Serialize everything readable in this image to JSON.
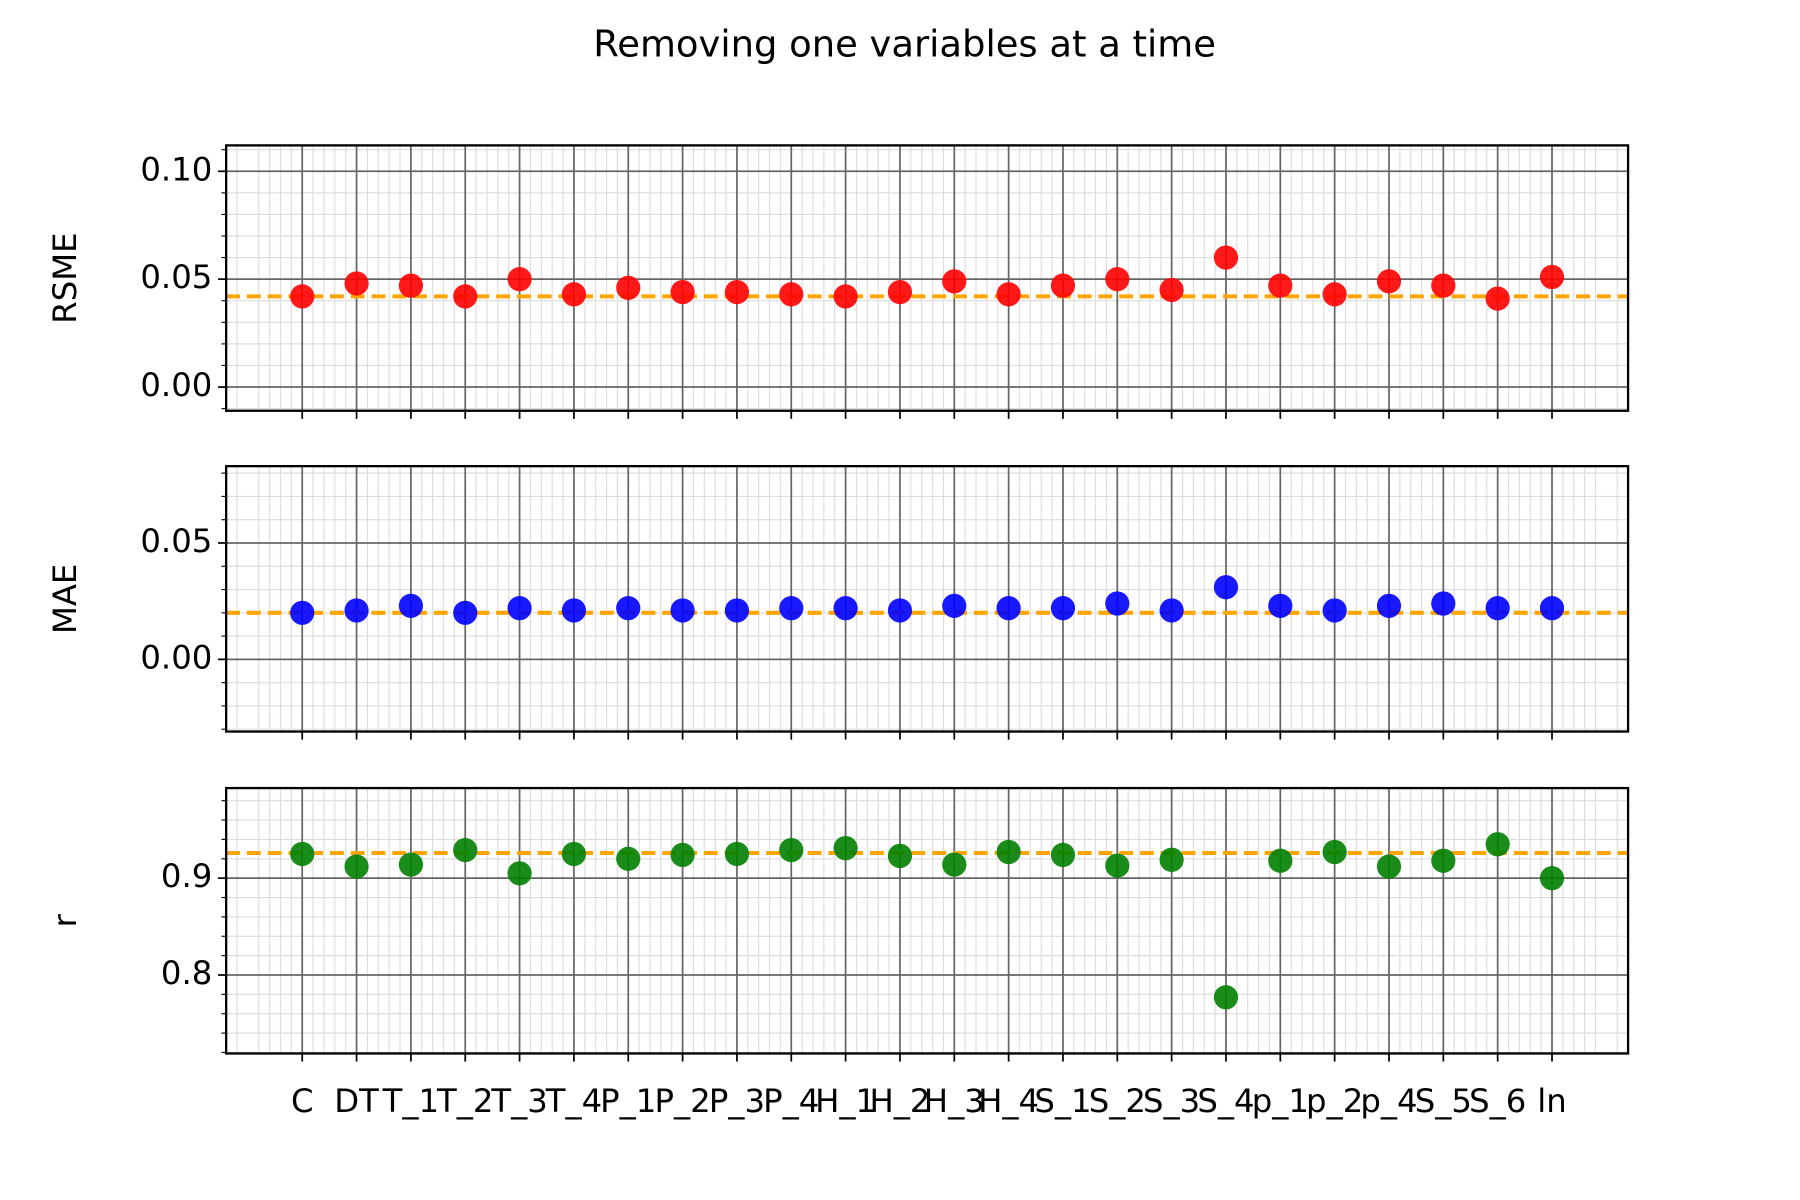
{
  "title": "Removing one variables at a time",
  "chart_data": [
    {
      "type": "scatter",
      "ylabel": "RSME",
      "color": "#ff0000",
      "categories": [
        "C",
        "DT",
        "T_1",
        "T_2",
        "T_3",
        "T_4",
        "P_1",
        "P_2",
        "P_3",
        "P_4",
        "H_1",
        "H_2",
        "H_3",
        "H_4",
        "S_1",
        "S_2",
        "S_3",
        "S_4",
        "p_1",
        "p_2",
        "p_4",
        "S_5",
        "S_6",
        "ln"
      ],
      "values": [
        0.042,
        0.048,
        0.047,
        0.042,
        0.05,
        0.043,
        0.046,
        0.044,
        0.044,
        0.043,
        0.042,
        0.044,
        0.049,
        0.043,
        0.047,
        0.05,
        0.045,
        0.06,
        0.047,
        0.043,
        0.049,
        0.047,
        0.041,
        0.051
      ],
      "hline": {
        "value": 0.042,
        "color": "#ffa500"
      },
      "xlim": [
        -1.4,
        24.4
      ],
      "ylim": [
        -0.011,
        0.112
      ],
      "yticks": [
        {
          "value": 0,
          "label": "0.00"
        },
        0.05,
        {
          "value": 0.1,
          "label": "0.10"
        }
      ],
      "grid": true,
      "minor_grid": true
    },
    {
      "type": "scatter",
      "ylabel": "MAE",
      "color": "#0000ff",
      "categories": [
        "C",
        "DT",
        "T_1",
        "T_2",
        "T_3",
        "T_4",
        "P_1",
        "P_2",
        "P_3",
        "P_4",
        "H_1",
        "H_2",
        "H_3",
        "H_4",
        "S_1",
        "S_2",
        "S_3",
        "S_4",
        "p_1",
        "p_2",
        "p_4",
        "S_5",
        "S_6",
        "ln"
      ],
      "values": [
        0.02,
        0.021,
        0.023,
        0.02,
        0.022,
        0.021,
        0.022,
        0.021,
        0.021,
        0.022,
        0.022,
        0.021,
        0.023,
        0.022,
        0.022,
        0.024,
        0.021,
        0.031,
        0.023,
        0.021,
        0.023,
        0.024,
        0.022,
        0.022
      ],
      "hline": {
        "value": 0.02,
        "color": "#ffa500"
      },
      "xlim": [
        -1.4,
        24.4
      ],
      "ylim": [
        -0.031,
        0.083
      ],
      "yticks": [
        {
          "value": 0,
          "label": "0.00"
        },
        0.05
      ],
      "grid": true,
      "minor_grid": true
    },
    {
      "type": "scatter",
      "ylabel": "r",
      "color": "#008000",
      "categories": [
        "C",
        "DT",
        "T_1",
        "T_2",
        "T_3",
        "T_4",
        "P_1",
        "P_2",
        "P_3",
        "P_4",
        "H_1",
        "H_2",
        "H_3",
        "H_4",
        "S_1",
        "S_2",
        "S_3",
        "S_4",
        "p_1",
        "p_2",
        "p_4",
        "S_5",
        "S_6",
        "ln"
      ],
      "values": [
        0.925,
        0.912,
        0.914,
        0.929,
        0.905,
        0.925,
        0.92,
        0.924,
        0.925,
        0.929,
        0.931,
        0.923,
        0.914,
        0.927,
        0.924,
        0.913,
        0.919,
        0.777,
        0.918,
        0.927,
        0.912,
        0.918,
        0.935,
        0.9
      ],
      "hline": {
        "value": 0.926,
        "color": "#ffa500"
      },
      "xlim": [
        -1.4,
        24.4
      ],
      "ylim": [
        0.719,
        0.993
      ],
      "yticks": [
        0.8,
        0.9
      ],
      "grid": true,
      "minor_grid": true,
      "show_xticklabels": true
    }
  ]
}
